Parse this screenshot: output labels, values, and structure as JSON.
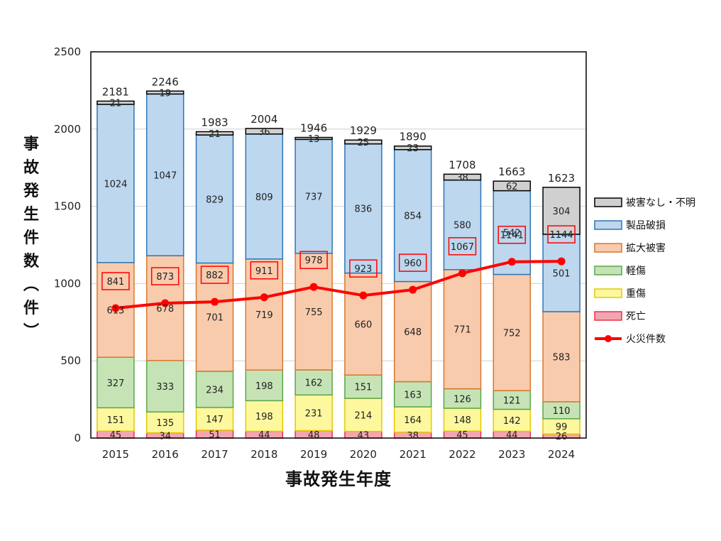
{
  "chart_data": {
    "type": "bar",
    "stacked": true,
    "xlabel": "事故発生年度",
    "ylabel": "事故発生件数（件）",
    "ylim": [
      0,
      2500
    ],
    "yticks": [
      "0",
      "500",
      "1000",
      "1500",
      "2000",
      "2500"
    ],
    "grid": true,
    "legend_position": "right",
    "categories": [
      "2015",
      "2016",
      "2017",
      "2018",
      "2019",
      "2020",
      "2021",
      "2022",
      "2023",
      "2024"
    ],
    "totals": [
      2181,
      2246,
      1983,
      2004,
      1946,
      1929,
      1890,
      1708,
      1663,
      1623
    ],
    "series": [
      {
        "name": "死亡",
        "values": [
          45,
          34,
          51,
          44,
          48,
          43,
          38,
          45,
          44,
          26
        ],
        "fill": "#f4a6b0",
        "stroke": "#e8334a"
      },
      {
        "name": "重傷",
        "values": [
          151,
          135,
          147,
          198,
          231,
          214,
          164,
          148,
          142,
          99
        ],
        "fill": "#fdf89e",
        "stroke": "#e6c800"
      },
      {
        "name": "軽傷",
        "values": [
          327,
          333,
          234,
          198,
          162,
          151,
          163,
          126,
          121,
          110
        ],
        "fill": "#c6e3b6",
        "stroke": "#5aa64a"
      },
      {
        "name": "拡大被害",
        "values": [
          613,
          678,
          701,
          719,
          755,
          660,
          648,
          771,
          752,
          583
        ],
        "fill": "#f8cbad",
        "stroke": "#d9772e"
      },
      {
        "name": "製品破損",
        "values": [
          1024,
          1047,
          829,
          809,
          737,
          836,
          854,
          580,
          542,
          501
        ],
        "fill": "#bdd7ee",
        "stroke": "#2e75b6"
      },
      {
        "name": "被害なし・不明",
        "values": [
          21,
          19,
          21,
          36,
          13,
          25,
          23,
          38,
          62,
          304
        ],
        "fill": "#d0d0d0",
        "stroke": "#000000"
      }
    ],
    "line": {
      "name": "火災件数",
      "values": [
        841,
        873,
        882,
        911,
        978,
        923,
        960,
        1067,
        1141,
        1144
      ],
      "color": "#ff0000"
    }
  }
}
